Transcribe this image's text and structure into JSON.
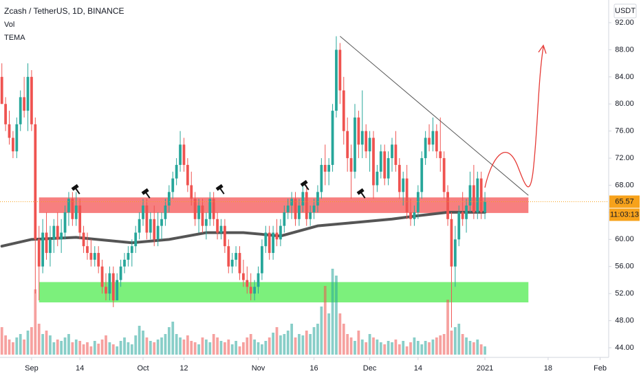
{
  "chart_data": {
    "type": "candlestick",
    "title": "Zcash / TetherUS, 1D, BINANCE",
    "currency": "USDT",
    "countdown": "11:03:13",
    "up_color": "#26a69a",
    "down_color": "#ef5350",
    "xlim": [
      -0.5,
      163.3
    ],
    "xticks": [
      {
        "value": 8,
        "label": "Sep"
      },
      {
        "value": 21,
        "label": "14"
      },
      {
        "value": 38,
        "label": "Oct"
      },
      {
        "value": 49,
        "label": "12"
      },
      {
        "value": 69,
        "label": "Nov"
      },
      {
        "value": 84,
        "label": "16"
      },
      {
        "value": 99,
        "label": "Dec"
      },
      {
        "value": 112,
        "label": "14"
      },
      {
        "value": 130,
        "label": "2021"
      },
      {
        "value": 147,
        "label": "18"
      },
      {
        "value": 161,
        "label": "Feb"
      }
    ],
    "ylim": [
      42.58,
      95.35
    ],
    "yticks": [
      {
        "value": 44,
        "label": "44.00"
      },
      {
        "value": 48,
        "label": "48.00"
      },
      {
        "value": 52,
        "label": "52.00"
      },
      {
        "value": 56,
        "label": "56.00"
      },
      {
        "value": 60,
        "label": "60.00"
      },
      {
        "value": 64,
        "label": "64.00"
      },
      {
        "value": 68,
        "label": "68.00"
      },
      {
        "value": 72,
        "label": "72.00"
      },
      {
        "value": 76,
        "label": "76.00"
      },
      {
        "value": 80,
        "label": "80.00"
      },
      {
        "value": 84,
        "label": "84.00"
      },
      {
        "value": 88,
        "label": "88.00"
      },
      {
        "value": 92,
        "label": "92.00"
      }
    ],
    "candles": [
      [
        84,
        86,
        80,
        80
      ],
      [
        80,
        81,
        76,
        77
      ],
      [
        77,
        79,
        74,
        75
      ],
      [
        75,
        76,
        72,
        73
      ],
      [
        73,
        78,
        72,
        77
      ],
      [
        77,
        82,
        76,
        81
      ],
      [
        81,
        84,
        78,
        79
      ],
      [
        79,
        86,
        76,
        84
      ],
      [
        84,
        85,
        76,
        77
      ],
      [
        77,
        78,
        52,
        60
      ],
      [
        60,
        62,
        51,
        56
      ],
      [
        56,
        63,
        55,
        61
      ],
      [
        61,
        64,
        57,
        58
      ],
      [
        58,
        62,
        56,
        60
      ],
      [
        60,
        63,
        58,
        62
      ],
      [
        62,
        64,
        59,
        60
      ],
      [
        60,
        63,
        58,
        61
      ],
      [
        61,
        65,
        60,
        64
      ],
      [
        64,
        67,
        62,
        66
      ],
      [
        66,
        67,
        62,
        63
      ],
      [
        63,
        67,
        62,
        65
      ],
      [
        65,
        66,
        60,
        61
      ],
      [
        61,
        62,
        58,
        59
      ],
      [
        59,
        61,
        57,
        58
      ],
      [
        58,
        60,
        56,
        57
      ],
      [
        57,
        59,
        56,
        58
      ],
      [
        58,
        59,
        55,
        56
      ],
      [
        56,
        57,
        52,
        53
      ],
      [
        53,
        55,
        51,
        52
      ],
      [
        52,
        56,
        51,
        55
      ],
      [
        55,
        56,
        50,
        51
      ],
      [
        51,
        55,
        51,
        54
      ],
      [
        54,
        57,
        53,
        56
      ],
      [
        56,
        58,
        55,
        57
      ],
      [
        57,
        59,
        56,
        58
      ],
      [
        58,
        60,
        56,
        59
      ],
      [
        59,
        62,
        58,
        61
      ],
      [
        61,
        64,
        60,
        63
      ],
      [
        63,
        66,
        62,
        65
      ],
      [
        65,
        66,
        60,
        61
      ],
      [
        61,
        64,
        60,
        63
      ],
      [
        63,
        65,
        59,
        60
      ],
      [
        60,
        64,
        59,
        62
      ],
      [
        62,
        64,
        60,
        63
      ],
      [
        63,
        66,
        62,
        65
      ],
      [
        65,
        68,
        64,
        67
      ],
      [
        67,
        70,
        66,
        69
      ],
      [
        69,
        72,
        68,
        71
      ],
      [
        71,
        76,
        70,
        74
      ],
      [
        74,
        75,
        70,
        71
      ],
      [
        71,
        72,
        67,
        68
      ],
      [
        68,
        70,
        65,
        66
      ],
      [
        66,
        67,
        62,
        63
      ],
      [
        63,
        66,
        61,
        65
      ],
      [
        65,
        66,
        61,
        62
      ],
      [
        62,
        64,
        60,
        63
      ],
      [
        63,
        67,
        62,
        66
      ],
      [
        66,
        67,
        62,
        63
      ],
      [
        63,
        64,
        60,
        61
      ],
      [
        61,
        63,
        60,
        62
      ],
      [
        62,
        63,
        58,
        59
      ],
      [
        59,
        60,
        55,
        56
      ],
      [
        56,
        58,
        55,
        57
      ],
      [
        57,
        59,
        56,
        58
      ],
      [
        58,
        59,
        54,
        55
      ],
      [
        55,
        57,
        53,
        54
      ],
      [
        54,
        56,
        52,
        53
      ],
      [
        53,
        55,
        51,
        52
      ],
      [
        52,
        54,
        51,
        53
      ],
      [
        53,
        56,
        52,
        55
      ],
      [
        55,
        60,
        54,
        59
      ],
      [
        59,
        62,
        58,
        61
      ],
      [
        61,
        62,
        57,
        58
      ],
      [
        58,
        62,
        57,
        61
      ],
      [
        61,
        63,
        59,
        60
      ],
      [
        60,
        63,
        59,
        62
      ],
      [
        62,
        65,
        61,
        64
      ],
      [
        64,
        66,
        63,
        65
      ],
      [
        65,
        67,
        63,
        66
      ],
      [
        66,
        67,
        62,
        63
      ],
      [
        63,
        66,
        62,
        65
      ],
      [
        65,
        68,
        64,
        67
      ],
      [
        67,
        68,
        62,
        63
      ],
      [
        63,
        65,
        62,
        64
      ],
      [
        64,
        66,
        63,
        65
      ],
      [
        65,
        68,
        64,
        67
      ],
      [
        67,
        72,
        66,
        71
      ],
      [
        71,
        74,
        68,
        70
      ],
      [
        70,
        72,
        68,
        71
      ],
      [
        71,
        80,
        70,
        79
      ],
      [
        79,
        90,
        78,
        88
      ],
      [
        88,
        89,
        80,
        82
      ],
      [
        82,
        84,
        74,
        76
      ],
      [
        76,
        78,
        70,
        72
      ],
      [
        72,
        74,
        66,
        70
      ],
      [
        70,
        80,
        69,
        78
      ],
      [
        78,
        79,
        72,
        74
      ],
      [
        74,
        82,
        72,
        76
      ],
      [
        76,
        77,
        72,
        73
      ],
      [
        73,
        76,
        70,
        75
      ],
      [
        75,
        76,
        66,
        68
      ],
      [
        68,
        71,
        67,
        70
      ],
      [
        70,
        74,
        69,
        73
      ],
      [
        73,
        74,
        68,
        69
      ],
      [
        69,
        73,
        68,
        72
      ],
      [
        72,
        75,
        70,
        74
      ],
      [
        74,
        76,
        70,
        71
      ],
      [
        71,
        72,
        66,
        67
      ],
      [
        67,
        70,
        65,
        69
      ],
      [
        69,
        71,
        63,
        64
      ],
      [
        64,
        66,
        62,
        63
      ],
      [
        63,
        65,
        62,
        64
      ],
      [
        64,
        68,
        63,
        67
      ],
      [
        67,
        73,
        66,
        72
      ],
      [
        72,
        76,
        71,
        75
      ],
      [
        75,
        77,
        73,
        74
      ],
      [
        74,
        78,
        73,
        76
      ],
      [
        76,
        77,
        72,
        73
      ],
      [
        73,
        78,
        70,
        72
      ],
      [
        72,
        73,
        66,
        67
      ],
      [
        67,
        68,
        62,
        63
      ],
      [
        63,
        64,
        47,
        56
      ],
      [
        56,
        62,
        53,
        60
      ],
      [
        60,
        65,
        59,
        64
      ],
      [
        64,
        67,
        62,
        63
      ],
      [
        63,
        66,
        61,
        65
      ],
      [
        65,
        70,
        64,
        68
      ],
      [
        68,
        71,
        63,
        64
      ],
      [
        64,
        70,
        63,
        69
      ],
      [
        69,
        70,
        63,
        64
      ],
      [
        64,
        67,
        63,
        65.57
      ]
    ],
    "volume": {
      "name": "Vol",
      "values": [
        40,
        28,
        22,
        18,
        25,
        30,
        22,
        35,
        40,
        95,
        45,
        30,
        35,
        28,
        18,
        22,
        20,
        25,
        30,
        18,
        22,
        20,
        15,
        18,
        12,
        20,
        16,
        22,
        28,
        18,
        15,
        12,
        20,
        25,
        18,
        15,
        28,
        42,
        35,
        25,
        20,
        18,
        22,
        25,
        30,
        40,
        48,
        30,
        25,
        22,
        28,
        20,
        18,
        15,
        25,
        22,
        18,
        30,
        25,
        20,
        18,
        22,
        15,
        20,
        12,
        18,
        25,
        30,
        22,
        18,
        15,
        20,
        25,
        32,
        40,
        28,
        30,
        35,
        45,
        25,
        30,
        28,
        35,
        30,
        40,
        45,
        70,
        100,
        60,
        125,
        115,
        60,
        45,
        30,
        25,
        20,
        35,
        22,
        18,
        30,
        25,
        22,
        18,
        15,
        20,
        18,
        22,
        15,
        20,
        12,
        18,
        25,
        20,
        15,
        20,
        18,
        22,
        25,
        28,
        30,
        80,
        35,
        40,
        45,
        30,
        25,
        20,
        18,
        22,
        15,
        12
      ]
    },
    "tema": {
      "name": "TEMA",
      "color": "#555555",
      "x": [
        0,
        8,
        20,
        35,
        45,
        55,
        65,
        75,
        85,
        95,
        105,
        112,
        120,
        130
      ],
      "values": [
        59,
        60,
        60.3,
        59.5,
        60,
        61,
        61,
        60.5,
        62,
        62.5,
        63,
        63.5,
        64,
        64
      ]
    },
    "zones": [
      {
        "color": "#f77f7f",
        "x": [
          10,
          141.7
        ],
        "y": [
          63.9,
          66.2
        ]
      },
      {
        "color": "#7cf07c",
        "x": [
          10,
          141.7
        ],
        "y": [
          50.7,
          53.7
        ]
      }
    ],
    "trendline": {
      "x": [
        91,
        141.7
      ],
      "y": [
        90,
        66.5
      ]
    }
  }
}
